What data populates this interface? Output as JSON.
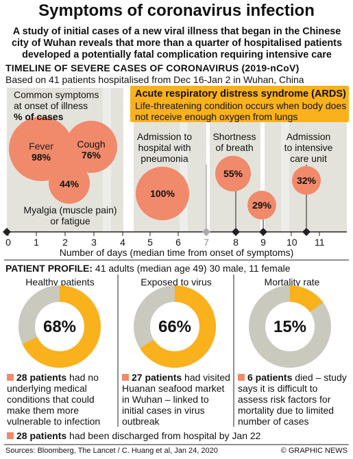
{
  "header": {
    "title": "Symptoms of coronavirus infection",
    "subtitle": "A study of initial cases of a new viral illness that began in the Chinese city of Wuhan reveals that more than a quarter of hospitalised patients developed a potentially fatal complication requiring intensive care"
  },
  "timeline": {
    "title": "TIMELINE OF SEVERE CASES OF CORONAVIRUS (2019-nCoV)",
    "subtitle": "Based on 41 patients hospitalised from Dec 16-Jan 2 in Wuhan, China",
    "common_label_1": "Common symptoms",
    "common_label_2": "at onset of illness",
    "common_label_3": "% of cases",
    "fever_label": "Fever",
    "fever_value": "98%",
    "cough_label": "Cough",
    "cough_value": "76%",
    "myalgia_value": "44%",
    "myalgia_label_1": "Myalgia (muscle pain)",
    "myalgia_label_2": "or fatigue",
    "admission_label_1": "Admission to",
    "admission_label_2": "hospital with",
    "admission_label_3": "pneumonia",
    "admission_value": "100%",
    "breath_label_1": "Shortness",
    "breath_label_2": "of breath",
    "breath_value": "55%",
    "ards_value": "29%",
    "icu_label_1": "Admission",
    "icu_label_2": "to intensive",
    "icu_label_3": "care unit",
    "icu_value": "32%",
    "ards_box_title": "Acute respiratory distress syndrome (ARDS)",
    "ards_box_text": "Life-threatening condition occurs when body does not receive enough oxygen from lungs",
    "xaxis_title": "Number of days (median time from onset of symptoms)",
    "ticks": [
      "0",
      "1",
      "2",
      "3",
      "4",
      "5",
      "6",
      "7",
      "8",
      "9",
      "10",
      "11"
    ]
  },
  "profile": {
    "title_bold": "PATIENT PROFILE:",
    "title_rest": " 41 adults (median age 49) 30 male, 11 female",
    "cards": [
      {
        "title": "Healthy patients",
        "value": "68%",
        "fraction": 0.68,
        "note_bold": "28 patients",
        "note_rest": " had no underlying medical conditions that could make them more vulnerable to infection"
      },
      {
        "title": "Exposed to virus",
        "value": "66%",
        "fraction": 0.66,
        "note_bold": "27 patients",
        "note_rest": " had visited Huanan seafood market in Wuhan – linked to initial cases in virus outbreak"
      },
      {
        "title": "Mortality rate",
        "value": "15%",
        "fraction": 0.15,
        "note_bold": "6 patients",
        "note_rest": " died – study says it is difficult to assess risk factors for mortality due to limited number of cases"
      }
    ],
    "discharged_bold": "28 patients",
    "discharged_rest": " had been discharged from hospital by Jan 22"
  },
  "footer": {
    "sources": "Sources: Bloomberg, The Lancet / C. Huang et al, Jan 24, 2020",
    "credit": "© GRAPHIC NEWS"
  },
  "colors": {
    "bubble": "#f08a6b",
    "ards_box": "#f9b11c",
    "donut_fill": "#f9b11c",
    "donut_track": "#c9c9bd",
    "band": "#e3e3dc"
  },
  "chart_data": [
    {
      "type": "scatter",
      "title": "TIMELINE OF SEVERE CASES OF CORONAVIRUS (2019-nCoV)",
      "xlabel": "Number of days (median time from onset of symptoms)",
      "xlim": [
        0,
        11
      ],
      "series": [
        {
          "name": "Fever",
          "x": 0,
          "value": 98
        },
        {
          "name": "Cough",
          "x": 0,
          "value": 76
        },
        {
          "name": "Myalgia (muscle pain) or fatigue",
          "x": 0,
          "value": 44
        },
        {
          "name": "Admission to hospital with pneumonia",
          "x": 7,
          "value": 100
        },
        {
          "name": "Shortness of breath",
          "x": 8,
          "value": 55
        },
        {
          "name": "Acute respiratory distress syndrome (ARDS)",
          "x": 9,
          "value": 29
        },
        {
          "name": "Admission to intensive care unit",
          "x": 10.5,
          "value": 32
        }
      ]
    },
    {
      "type": "pie",
      "categories": [
        "Healthy patients",
        "Exposed to virus",
        "Mortality rate"
      ],
      "values": [
        68,
        66,
        15
      ]
    }
  ]
}
